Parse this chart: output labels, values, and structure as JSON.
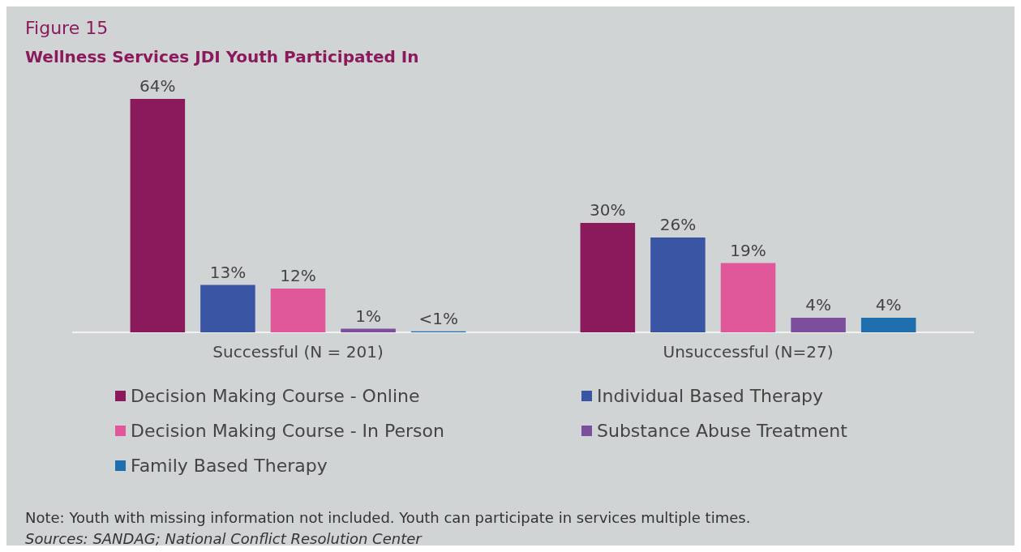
{
  "chart_data": {
    "type": "bar",
    "title": "Figure 15",
    "subtitle": "Wellness Services JDI Youth Participated In",
    "categories": [
      "Successful (N = 201)",
      "Unsuccessful (N=27)"
    ],
    "series": [
      {
        "name": "Decision Making Course - Online",
        "color": "#8b1a5c",
        "values": [
          64,
          30
        ],
        "value_labels": [
          "64%",
          "30%"
        ]
      },
      {
        "name": "Individual Based Therapy",
        "color": "#3a55a3",
        "values": [
          13,
          26
        ],
        "value_labels": [
          "13%",
          "26%"
        ]
      },
      {
        "name": "Decision Making Course - In Person",
        "color": "#e0589a",
        "values": [
          12,
          19
        ],
        "value_labels": [
          "12%",
          "19%"
        ]
      },
      {
        "name": "Substance Abuse Treatment",
        "color": "#7b4f9d",
        "values": [
          1,
          4
        ],
        "value_labels": [
          "1%",
          "4%"
        ]
      },
      {
        "name": "Family Based Therapy",
        "color": "#1f6fae",
        "values": [
          0.3,
          4
        ],
        "value_labels": [
          "<1%",
          "4%"
        ]
      }
    ],
    "ylim": [
      0,
      64
    ],
    "tick_labels": "x",
    "grid": false,
    "legend": "bottom",
    "annotations": [
      "Note: Youth with missing information not included. Youth can participate in services multiple times.",
      "Sources: SANDAG; National Conflict Resolution Center"
    ]
  }
}
